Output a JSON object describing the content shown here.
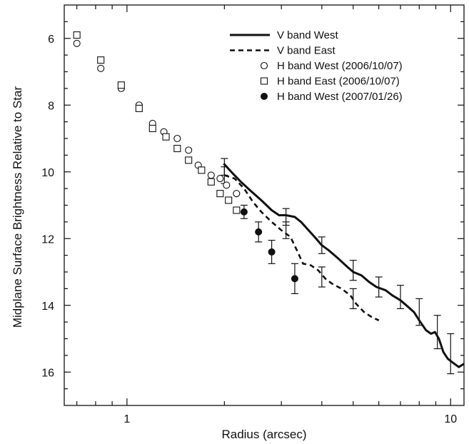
{
  "chart_data": {
    "type": "scatter",
    "title": "",
    "xlabel": "Radius (arcsec)",
    "ylabel": "Midplane Surface Brightness Relative to Star",
    "xscale": "log",
    "xlim": [
      0.64,
      11.0
    ],
    "ylim": [
      17.0,
      5.0
    ],
    "yinverted": true,
    "x_ticks": [
      {
        "value": 1,
        "label": "1"
      },
      {
        "value": 10,
        "label": "10"
      }
    ],
    "y_ticks": [
      {
        "value": 6,
        "label": "6"
      },
      {
        "value": 8,
        "label": "8"
      },
      {
        "value": 10,
        "label": "10"
      },
      {
        "value": 12,
        "label": "12"
      },
      {
        "value": 14,
        "label": "14"
      },
      {
        "value": 16,
        "label": "16"
      }
    ],
    "legend_position": "top-right",
    "series": [
      {
        "name": "V band West",
        "kind": "line",
        "style": "solid",
        "x": [
          1.99,
          2.1,
          2.25,
          2.4,
          2.6,
          2.8,
          2.95,
          3.1,
          3.3,
          3.45,
          3.6,
          3.8,
          4.0,
          4.2,
          4.5,
          4.8,
          5.0,
          5.3,
          5.6,
          5.9,
          6.3,
          6.6,
          7.0,
          7.3,
          7.7,
          8.0,
          8.4,
          8.7,
          8.95,
          9.2,
          9.5,
          9.8,
          10.1,
          10.6,
          11.0
        ],
        "y": [
          9.75,
          10.0,
          10.3,
          10.55,
          10.85,
          11.15,
          11.3,
          11.3,
          11.35,
          11.5,
          11.7,
          11.95,
          12.2,
          12.35,
          12.6,
          12.85,
          13.0,
          13.1,
          13.3,
          13.45,
          13.55,
          13.7,
          13.85,
          14.0,
          14.2,
          14.45,
          14.75,
          14.85,
          14.8,
          15.0,
          15.4,
          15.6,
          15.7,
          15.85,
          15.75
        ]
      },
      {
        "name": "V band East",
        "kind": "line",
        "style": "dashed",
        "x": [
          2.0,
          2.15,
          2.3,
          2.45,
          2.6,
          2.8,
          3.0,
          3.2,
          3.35,
          3.5,
          3.7,
          3.9,
          4.1,
          4.3,
          4.6,
          4.9,
          5.1,
          5.4,
          5.7,
          6.0
        ],
        "y": [
          10.1,
          10.2,
          10.5,
          10.9,
          11.2,
          11.5,
          11.75,
          11.95,
          12.35,
          12.75,
          12.8,
          12.95,
          13.2,
          13.35,
          13.5,
          13.7,
          13.95,
          14.2,
          14.35,
          14.45
        ]
      },
      {
        "name": "H band West (2006/10/07)",
        "kind": "marker",
        "marker": "open-circle",
        "x": [
          0.7,
          0.83,
          0.96,
          1.09,
          1.2,
          1.3,
          1.43,
          1.55,
          1.66,
          1.82,
          1.94,
          2.03,
          2.18
        ],
        "y": [
          6.15,
          6.9,
          7.5,
          8.0,
          8.55,
          8.8,
          9.0,
          9.35,
          9.8,
          10.1,
          10.2,
          10.4,
          10.65
        ]
      },
      {
        "name": "H band East (2006/10/07)",
        "kind": "marker",
        "marker": "open-square",
        "x": [
          0.7,
          0.83,
          0.96,
          1.09,
          1.2,
          1.32,
          1.43,
          1.55,
          1.7,
          1.82,
          1.94,
          2.06,
          2.18
        ],
        "y": [
          5.9,
          6.65,
          7.4,
          8.1,
          8.7,
          8.95,
          9.3,
          9.65,
          9.95,
          10.3,
          10.65,
          10.85,
          11.15
        ]
      },
      {
        "name": "H band West (2007/01/26)",
        "kind": "marker",
        "marker": "filled-circle",
        "x": [
          2.3,
          2.55,
          2.8,
          3.3
        ],
        "y": [
          11.2,
          11.8,
          12.4,
          13.2
        ],
        "yerr": [
          0.2,
          0.3,
          0.35,
          0.45
        ]
      }
    ],
    "error_bars_v_band_west": {
      "x": [
        2.0,
        3.1,
        4.0,
        5.0,
        6.0,
        7.0,
        8.0,
        9.1,
        10.0
      ],
      "y": [
        9.85,
        11.35,
        12.2,
        12.95,
        13.45,
        13.75,
        14.2,
        14.8,
        15.45
      ],
      "yerr": [
        0.25,
        0.25,
        0.25,
        0.3,
        0.3,
        0.35,
        0.4,
        0.5,
        0.6
      ]
    },
    "error_bars_v_band_east": {
      "x": [
        2.0,
        3.1,
        4.0,
        5.0
      ],
      "y": [
        10.1,
        11.75,
        13.15,
        13.8
      ],
      "yerr": [
        0.25,
        0.25,
        0.3,
        0.3
      ]
    }
  }
}
